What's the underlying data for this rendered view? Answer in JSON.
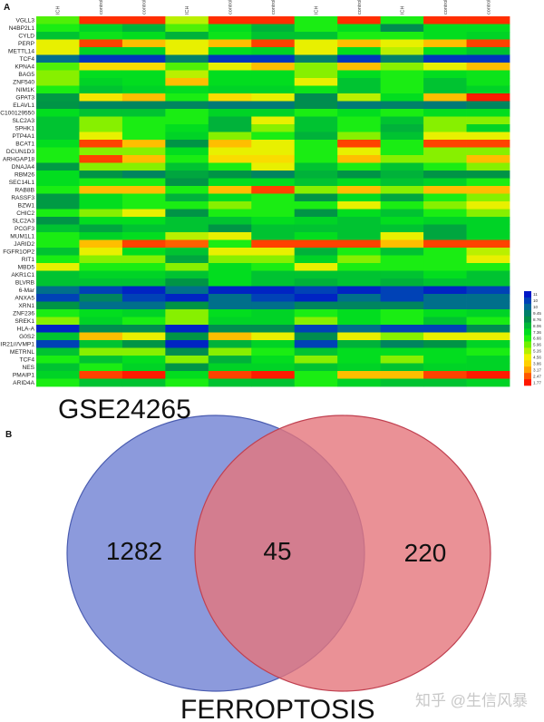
{
  "panel_a_label": "A",
  "panel_b_label": "B",
  "watermark": "知乎 @生信风暴",
  "chart_data": [
    {
      "type": "heatmap",
      "title": "",
      "columns": [
        "ICH",
        "control",
        "control",
        "ICH",
        "control",
        "control",
        "ICH",
        "control",
        "ICH",
        "control",
        "control"
      ],
      "rows": [
        "VGLL3",
        "N4BP2L1",
        "CYLD",
        "PERP",
        "METTL14",
        "TCF4",
        "KPNA4",
        "BAG5",
        "ZNF540",
        "NIM1K",
        "GPAT3",
        "ELAVL1",
        "LOC100129550",
        "SLC2A3",
        "SPHK1",
        "PTP4A1",
        "BCAT1",
        "DCUN1D3",
        "ARHGAP18",
        "DNAJA4",
        "RBM26",
        "SEC14L1",
        "RAB8B",
        "RASSF3",
        "BZW1",
        "CHIC2",
        "SLC2A3",
        "PCGF3",
        "MUM1L1",
        "JARID2",
        "FGFR1OP2",
        "RIT1",
        "MBD5",
        "AKR1C1",
        "BLVRB",
        "6-Mar",
        "ANXA5",
        "XRN1",
        "ZNF236",
        "SREK1",
        "HLA-A",
        "G0S2",
        "MIR21///VMP1",
        "METRNL",
        "TCF4",
        "NES",
        "PMAIP1",
        "ARID4A"
      ],
      "values": [
        [
          6,
          2,
          2,
          5,
          2,
          2,
          6.5,
          2,
          6.5,
          2,
          2
        ],
        [
          6.5,
          7.2,
          7.8,
          6,
          7,
          7.8,
          6.5,
          7,
          8.5,
          7,
          7
        ],
        [
          7.5,
          6.8,
          7,
          7.8,
          6.8,
          7.5,
          7.5,
          6.5,
          6.5,
          7,
          7.2
        ],
        [
          4.5,
          2.2,
          3.5,
          4.5,
          3.5,
          2.2,
          4.5,
          3.5,
          4.5,
          3.5,
          2.2
        ],
        [
          4.5,
          7.2,
          7.2,
          4.5,
          7,
          7.2,
          4.5,
          7,
          5,
          7,
          7.5
        ],
        [
          9.5,
          10.5,
          10.5,
          9,
          10.5,
          10.5,
          9,
          10.5,
          9,
          10.5,
          10.5
        ],
        [
          6,
          4,
          4,
          6,
          4.5,
          3.5,
          5.5,
          3.5,
          5.5,
          4.5,
          3.5
        ],
        [
          5.5,
          7,
          7,
          5,
          7,
          7,
          5.5,
          7,
          6.5,
          7,
          6.8
        ],
        [
          5.5,
          7.2,
          7,
          3.5,
          7,
          7,
          4.5,
          7.5,
          6.5,
          7.5,
          6.8
        ],
        [
          6.5,
          7.5,
          7.2,
          7,
          7.2,
          7.2,
          6.8,
          7.5,
          6.5,
          7.5,
          7.2
        ],
        [
          8.2,
          4.2,
          3.5,
          6.5,
          4,
          4.5,
          8.5,
          5,
          7,
          3.5,
          1.8
        ],
        [
          8.3,
          8.8,
          8.8,
          8.8,
          9.2,
          9.2,
          8.5,
          9.2,
          9,
          9.2,
          8.8
        ],
        [
          7,
          7.5,
          7.5,
          6.5,
          7.2,
          7.2,
          6.5,
          7,
          6.5,
          7,
          7
        ],
        [
          7.5,
          5.5,
          6.5,
          6.5,
          7.8,
          4.5,
          7.5,
          6.5,
          7.5,
          5.5,
          5.5
        ],
        [
          7.5,
          5.5,
          6.5,
          7,
          7.8,
          5.5,
          7.5,
          6.5,
          7.8,
          5.5,
          7.2
        ],
        [
          7.5,
          4.5,
          6.5,
          7.2,
          5.5,
          6.5,
          7.8,
          5.5,
          7.5,
          4.5,
          4.5
        ],
        [
          7,
          2.2,
          3.5,
          8.3,
          3.5,
          4.5,
          6.5,
          2.2,
          6.5,
          2.2,
          2.2
        ],
        [
          6.5,
          5.5,
          5.5,
          7,
          4.5,
          4.5,
          6.5,
          4.5,
          6.5,
          5.5,
          5.5
        ],
        [
          6.5,
          2.2,
          3.5,
          6.5,
          4,
          4,
          6.5,
          3.5,
          5.5,
          5.5,
          3.5
        ],
        [
          8.2,
          5.5,
          5.5,
          7.5,
          6.5,
          4.5,
          7.5,
          6.5,
          7.5,
          6.5,
          5.5
        ],
        [
          7,
          8.3,
          8.8,
          8,
          8.3,
          8.8,
          7.8,
          8.3,
          7.8,
          8.3,
          8.3
        ],
        [
          7,
          6.5,
          6.5,
          8.3,
          7,
          7,
          7.5,
          7,
          7.5,
          7.2,
          6.5
        ],
        [
          6.5,
          3.5,
          3.5,
          6.5,
          3.5,
          2.2,
          5.5,
          3.5,
          5.5,
          3.5,
          3.5
        ],
        [
          8.2,
          7,
          6.5,
          7.8,
          7,
          6.5,
          8.3,
          7,
          8,
          6.5,
          5.5
        ],
        [
          8.2,
          7,
          6.5,
          6.5,
          5.5,
          6.5,
          6.5,
          4.5,
          6.5,
          5.5,
          4.5
        ],
        [
          6.5,
          5.5,
          4.5,
          8.3,
          6.5,
          6.5,
          8.3,
          7,
          7.5,
          6.5,
          5.5
        ],
        [
          8.3,
          7,
          7,
          7.5,
          7.5,
          7,
          7.2,
          7.5,
          7,
          7.2,
          7.2
        ],
        [
          7.5,
          8,
          7.5,
          7.5,
          8.3,
          7.5,
          7.5,
          7.5,
          7.5,
          8,
          7.2
        ],
        [
          6.5,
          7.2,
          7,
          5,
          4.5,
          7.5,
          7,
          7.5,
          4.5,
          8,
          7.2
        ],
        [
          6.5,
          3.5,
          2.2,
          2.5,
          6.5,
          2.2,
          2.2,
          2.2,
          3.5,
          2.2,
          2.2
        ],
        [
          7.5,
          4.5,
          7,
          7.5,
          4.5,
          4.5,
          7.8,
          6.5,
          7.5,
          6.5,
          5
        ],
        [
          6.5,
          5.5,
          5.5,
          8,
          5.5,
          5.5,
          7.2,
          5.5,
          6.5,
          6.5,
          4.5
        ],
        [
          4.5,
          6.5,
          6.5,
          5.5,
          7,
          6.5,
          4.5,
          6.5,
          6.5,
          6.5,
          6.5
        ],
        [
          7.5,
          7.2,
          7.2,
          7.5,
          7,
          7.5,
          7.5,
          7.5,
          7.5,
          7,
          7.5
        ],
        [
          7.5,
          7.5,
          7.5,
          8.3,
          7,
          7.5,
          7.8,
          7.5,
          7.8,
          7.5,
          7.5
        ],
        [
          9.5,
          10.3,
          10.8,
          9.5,
          10.8,
          10.8,
          10.3,
          10.8,
          10.3,
          10.8,
          10.3
        ],
        [
          10.3,
          8.8,
          10.3,
          10.8,
          9.5,
          10.3,
          10.8,
          9.5,
          10.3,
          9.5,
          9.5
        ],
        [
          8.3,
          9.5,
          9.5,
          8.3,
          9.5,
          9.5,
          8.8,
          8.8,
          8.8,
          9.5,
          9.5
        ],
        [
          6.5,
          7,
          7.2,
          5.5,
          7,
          7.2,
          6.5,
          7,
          6.5,
          7,
          7.2
        ],
        [
          5.5,
          7.2,
          6.5,
          5.5,
          7.2,
          7.2,
          5.5,
          7,
          6.5,
          7.5,
          6.5
        ],
        [
          10.8,
          8.5,
          8.5,
          10.8,
          8.5,
          8.5,
          10.3,
          9.5,
          10.3,
          10.3,
          8.5
        ],
        [
          7.5,
          3.5,
          4.5,
          8.3,
          3.5,
          4.5,
          8.5,
          4.5,
          5.5,
          4.5,
          4.5
        ],
        [
          10.3,
          7.5,
          8.3,
          10.8,
          7.8,
          7.2,
          10.3,
          7.8,
          8.8,
          8.3,
          7.2
        ],
        [
          7.5,
          5.5,
          5.5,
          8.5,
          5.5,
          6.5,
          7.5,
          7,
          7,
          7,
          6.5
        ],
        [
          6.5,
          7.5,
          7,
          5.5,
          7.8,
          7,
          5.5,
          7,
          5.5,
          7,
          7.2
        ],
        [
          7.5,
          6.5,
          7.2,
          8.3,
          7.2,
          7.2,
          7.5,
          7.2,
          7.5,
          7.2,
          7.2
        ],
        [
          7.2,
          2.2,
          1.8,
          7,
          2.2,
          1.8,
          6.5,
          3.5,
          3.5,
          2.2,
          1.8
        ],
        [
          6.5,
          7.5,
          7.5,
          6.5,
          7.5,
          7.5,
          6.5,
          7.2,
          7.5,
          7.5,
          7.2
        ]
      ],
      "legend": {
        "ticks": [
          "11",
          "10",
          "10",
          "9.45",
          "8.76",
          "8.06",
          "7.36",
          "6.66",
          "5.96",
          "5.26",
          "4.56",
          "3.86",
          "3.17",
          "2.47",
          "1.77"
        ],
        "range": [
          1.77,
          11
        ],
        "colors": [
          "#0018c8",
          "#0040b8",
          "#006898",
          "#00806a",
          "#009048",
          "#00b838",
          "#00dc20",
          "#20f010",
          "#70f000",
          "#b4f000",
          "#f0f000",
          "#ffd000",
          "#ffa000",
          "#ff5800",
          "#ff1800"
        ]
      }
    },
    {
      "type": "venn",
      "sets": [
        {
          "name": "GSE24265",
          "only": "1282",
          "color": "#7f8fd8"
        },
        {
          "name": "FERROPTOSIS",
          "only": "220",
          "color": "#e5767c"
        }
      ],
      "intersection": "45"
    }
  ]
}
